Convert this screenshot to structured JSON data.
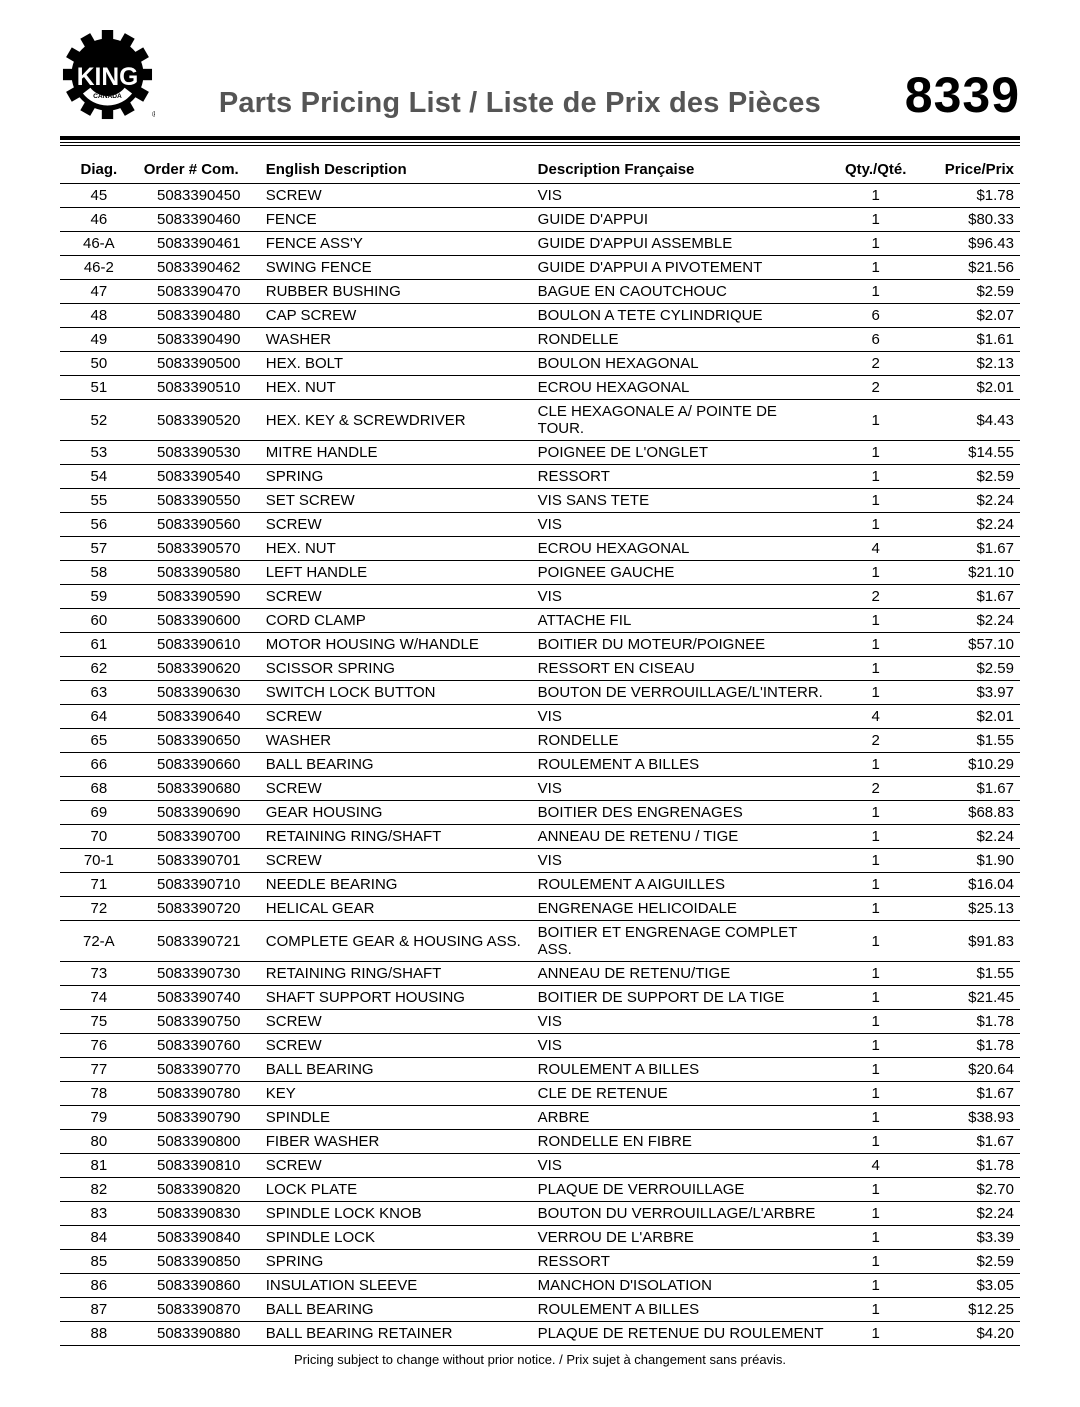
{
  "header": {
    "title": "Parts Pricing List / Liste de Prix des Pièces",
    "part_number": "8339",
    "logo_text_main": "KING",
    "logo_text_sub": "CANADA"
  },
  "columns": {
    "diag": "Diag.",
    "order": "Order # Com.",
    "english": "English Description",
    "french": "Description Française",
    "qty": "Qty./Qté.",
    "price": "Price/Prix"
  },
  "rows": [
    {
      "diag": "45",
      "order": "5083390450",
      "en": "SCREW",
      "fr": "VIS",
      "qty": "1",
      "price": "$1.78"
    },
    {
      "diag": "46",
      "order": "5083390460",
      "en": "FENCE",
      "fr": "GUIDE D'APPUI",
      "qty": "1",
      "price": "$80.33"
    },
    {
      "diag": "46-A",
      "order": "5083390461",
      "en": "FENCE ASS'Y",
      "fr": "GUIDE D'APPUI ASSEMBLE",
      "qty": "1",
      "price": "$96.43"
    },
    {
      "diag": "46-2",
      "order": "5083390462",
      "en": "SWING FENCE",
      "fr": "GUIDE D'APPUI A PIVOTEMENT",
      "qty": "1",
      "price": "$21.56"
    },
    {
      "diag": "47",
      "order": "5083390470",
      "en": "RUBBER BUSHING",
      "fr": "BAGUE EN CAOUTCHOUC",
      "qty": "1",
      "price": "$2.59"
    },
    {
      "diag": "48",
      "order": "5083390480",
      "en": "CAP SCREW",
      "fr": "BOULON A TETE CYLINDRIQUE",
      "qty": "6",
      "price": "$2.07"
    },
    {
      "diag": "49",
      "order": "5083390490",
      "en": "WASHER",
      "fr": "RONDELLE",
      "qty": "6",
      "price": "$1.61"
    },
    {
      "diag": "50",
      "order": "5083390500",
      "en": "HEX. BOLT",
      "fr": "BOULON HEXAGONAL",
      "qty": "2",
      "price": "$2.13"
    },
    {
      "diag": "51",
      "order": "5083390510",
      "en": "HEX. NUT",
      "fr": "ECROU HEXAGONAL",
      "qty": "2",
      "price": "$2.01"
    },
    {
      "diag": "52",
      "order": "5083390520",
      "en": "HEX. KEY & SCREWDRIVER",
      "fr": "CLE HEXAGONALE A/ POINTE DE TOUR.",
      "qty": "1",
      "price": "$4.43"
    },
    {
      "diag": "53",
      "order": "5083390530",
      "en": "MITRE HANDLE",
      "fr": "POIGNEE DE L'ONGLET",
      "qty": "1",
      "price": "$14.55"
    },
    {
      "diag": "54",
      "order": "5083390540",
      "en": "SPRING",
      "fr": "RESSORT",
      "qty": "1",
      "price": "$2.59"
    },
    {
      "diag": "55",
      "order": "5083390550",
      "en": "SET SCREW",
      "fr": "VIS SANS TETE",
      "qty": "1",
      "price": "$2.24"
    },
    {
      "diag": "56",
      "order": "5083390560",
      "en": "SCREW",
      "fr": "VIS",
      "qty": "1",
      "price": "$2.24"
    },
    {
      "diag": "57",
      "order": "5083390570",
      "en": "HEX. NUT",
      "fr": "ECROU HEXAGONAL",
      "qty": "4",
      "price": "$1.67"
    },
    {
      "diag": "58",
      "order": "5083390580",
      "en": "LEFT HANDLE",
      "fr": "POIGNEE GAUCHE",
      "qty": "1",
      "price": "$21.10"
    },
    {
      "diag": "59",
      "order": "5083390590",
      "en": "SCREW",
      "fr": "VIS",
      "qty": "2",
      "price": "$1.67"
    },
    {
      "diag": "60",
      "order": "5083390600",
      "en": "CORD CLAMP",
      "fr": "ATTACHE FIL",
      "qty": "1",
      "price": "$2.24"
    },
    {
      "diag": "61",
      "order": "5083390610",
      "en": "MOTOR HOUSING W/HANDLE",
      "fr": "BOITIER DU MOTEUR/POIGNEE",
      "qty": "1",
      "price": "$57.10"
    },
    {
      "diag": "62",
      "order": "5083390620",
      "en": "SCISSOR SPRING",
      "fr": "RESSORT EN CISEAU",
      "qty": "1",
      "price": "$2.59"
    },
    {
      "diag": "63",
      "order": "5083390630",
      "en": "SWITCH LOCK BUTTON",
      "fr": "BOUTON DE VERROUILLAGE/L'INTERR.",
      "qty": "1",
      "price": "$3.97"
    },
    {
      "diag": "64",
      "order": "5083390640",
      "en": "SCREW",
      "fr": "VIS",
      "qty": "4",
      "price": "$2.01"
    },
    {
      "diag": "65",
      "order": "5083390650",
      "en": "WASHER",
      "fr": "RONDELLE",
      "qty": "2",
      "price": "$1.55"
    },
    {
      "diag": "66",
      "order": "5083390660",
      "en": "BALL BEARING",
      "fr": "ROULEMENT A BILLES",
      "qty": "1",
      "price": "$10.29"
    },
    {
      "diag": "68",
      "order": "5083390680",
      "en": "SCREW",
      "fr": "VIS",
      "qty": "2",
      "price": "$1.67"
    },
    {
      "diag": "69",
      "order": "5083390690",
      "en": "GEAR HOUSING",
      "fr": "BOITIER DES ENGRENAGES",
      "qty": "1",
      "price": "$68.83"
    },
    {
      "diag": "70",
      "order": "5083390700",
      "en": "RETAINING RING/SHAFT",
      "fr": "ANNEAU DE RETENU / TIGE",
      "qty": "1",
      "price": "$2.24"
    },
    {
      "diag": "70-1",
      "order": "5083390701",
      "en": "SCREW",
      "fr": "VIS",
      "qty": "1",
      "price": "$1.90"
    },
    {
      "diag": "71",
      "order": "5083390710",
      "en": "NEEDLE BEARING",
      "fr": "ROULEMENT A AIGUILLES",
      "qty": "1",
      "price": "$16.04"
    },
    {
      "diag": "72",
      "order": "5083390720",
      "en": "HELICAL GEAR",
      "fr": "ENGRENAGE HELICOIDALE",
      "qty": "1",
      "price": "$25.13"
    },
    {
      "diag": "72-A",
      "order": "5083390721",
      "en": "COMPLETE GEAR & HOUSING ASS.",
      "fr": "BOITIER ET ENGRENAGE COMPLET ASS.",
      "qty": "1",
      "price": "$91.83"
    },
    {
      "diag": "73",
      "order": "5083390730",
      "en": "RETAINING RING/SHAFT",
      "fr": "ANNEAU DE RETENU/TIGE",
      "qty": "1",
      "price": "$1.55"
    },
    {
      "diag": "74",
      "order": "5083390740",
      "en": "SHAFT SUPPORT HOUSING",
      "fr": "BOITIER DE SUPPORT DE LA TIGE",
      "qty": "1",
      "price": "$21.45"
    },
    {
      "diag": "75",
      "order": "5083390750",
      "en": "SCREW",
      "fr": "VIS",
      "qty": "1",
      "price": "$1.78"
    },
    {
      "diag": "76",
      "order": "5083390760",
      "en": "SCREW",
      "fr": "VIS",
      "qty": "1",
      "price": "$1.78"
    },
    {
      "diag": "77",
      "order": "5083390770",
      "en": "BALL BEARING",
      "fr": "ROULEMENT A BILLES",
      "qty": "1",
      "price": "$20.64"
    },
    {
      "diag": "78",
      "order": "5083390780",
      "en": "KEY",
      "fr": "CLE DE RETENUE",
      "qty": "1",
      "price": "$1.67"
    },
    {
      "diag": "79",
      "order": "5083390790",
      "en": "SPINDLE",
      "fr": "ARBRE",
      "qty": "1",
      "price": "$38.93"
    },
    {
      "diag": "80",
      "order": "5083390800",
      "en": "FIBER WASHER",
      "fr": "RONDELLE EN FIBRE",
      "qty": "1",
      "price": "$1.67"
    },
    {
      "diag": "81",
      "order": "5083390810",
      "en": "SCREW",
      "fr": "VIS",
      "qty": "4",
      "price": "$1.78"
    },
    {
      "diag": "82",
      "order": "5083390820",
      "en": "LOCK PLATE",
      "fr": "PLAQUE DE VERROUILLAGE",
      "qty": "1",
      "price": "$2.70"
    },
    {
      "diag": "83",
      "order": "5083390830",
      "en": "SPINDLE LOCK KNOB",
      "fr": "BOUTON DU VERROUILLAGE/L'ARBRE",
      "qty": "1",
      "price": "$2.24"
    },
    {
      "diag": "84",
      "order": "5083390840",
      "en": "SPINDLE LOCK",
      "fr": "VERROU DE L'ARBRE",
      "qty": "1",
      "price": "$3.39"
    },
    {
      "diag": "85",
      "order": "5083390850",
      "en": "SPRING",
      "fr": "RESSORT",
      "qty": "1",
      "price": "$2.59"
    },
    {
      "diag": "86",
      "order": "5083390860",
      "en": "INSULATION SLEEVE",
      "fr": "MANCHON D'ISOLATION",
      "qty": "1",
      "price": "$3.05"
    },
    {
      "diag": "87",
      "order": "5083390870",
      "en": "BALL BEARING",
      "fr": "ROULEMENT A BILLES",
      "qty": "1",
      "price": "$12.25"
    },
    {
      "diag": "88",
      "order": "5083390880",
      "en": "BALL BEARING RETAINER",
      "fr": "PLAQUE DE RETENUE DU ROULEMENT",
      "qty": "1",
      "price": "$4.20"
    }
  ],
  "footer": "Pricing subject to change without prior notice. / Prix sujet à changement sans préavis."
}
